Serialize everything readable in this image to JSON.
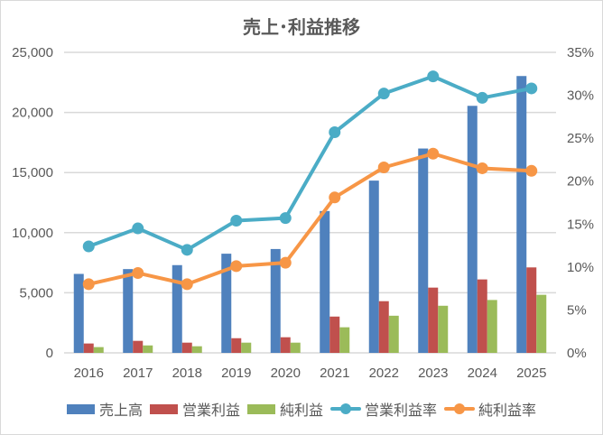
{
  "chart_data": {
    "type": "bar+line",
    "title": "売上･利益推移",
    "categories": [
      "2016",
      "2017",
      "2018",
      "2019",
      "2020",
      "2021",
      "2022",
      "2023",
      "2024",
      "2025"
    ],
    "bar_series": [
      {
        "name": "売上高",
        "color": "#4f81bd",
        "values": [
          6570,
          6970,
          7300,
          8250,
          8640,
          11800,
          14330,
          17000,
          20550,
          23030
        ]
      },
      {
        "name": "営業利益",
        "color": "#c0504d",
        "values": [
          780,
          1000,
          850,
          1220,
          1300,
          3020,
          4300,
          5430,
          6110,
          7110
        ]
      },
      {
        "name": "純利益",
        "color": "#9bbb59",
        "values": [
          480,
          620,
          550,
          850,
          850,
          2130,
          3090,
          3920,
          4400,
          4830
        ]
      }
    ],
    "line_series": [
      {
        "name": "営業利益率",
        "color": "#4bacc6",
        "axis": "right",
        "values": [
          12.4,
          14.5,
          12.0,
          15.4,
          15.7,
          25.7,
          30.2,
          32.2,
          29.7,
          30.8
        ]
      },
      {
        "name": "純利益率",
        "color": "#f79646",
        "axis": "right",
        "values": [
          8.0,
          9.3,
          8.0,
          10.1,
          10.5,
          18.1,
          21.6,
          23.2,
          21.5,
          21.2
        ]
      }
    ],
    "y_left": {
      "min": 0,
      "max": 25000,
      "step": 5000,
      "tick_labels": [
        "0",
        "5,000",
        "10,000",
        "15,000",
        "20,000",
        "25,000"
      ]
    },
    "y_right": {
      "min": 0,
      "max": 35,
      "step": 5,
      "tick_labels": [
        "0%",
        "5%",
        "10%",
        "15%",
        "20%",
        "25%",
        "30%",
        "35%"
      ]
    },
    "grid": true,
    "legend_position": "bottom"
  }
}
